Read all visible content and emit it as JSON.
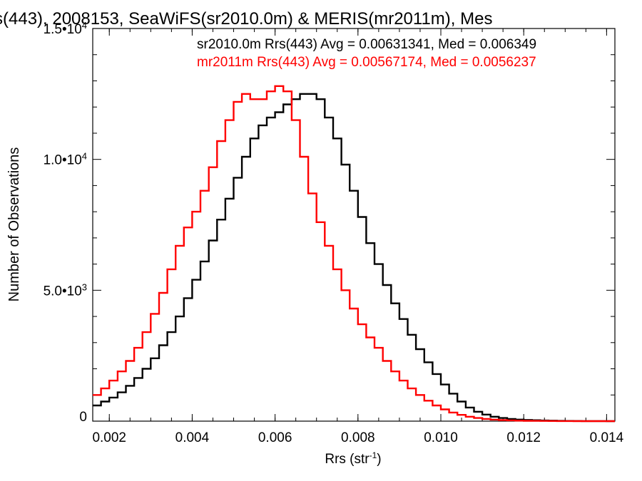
{
  "chart_data": {
    "type": "line",
    "title": "s(443), 2008153, SeaWiFS(sr2010.0m) & MERIS(mr2011m), Mes",
    "xlabel": "Rrs (str",
    "xlabel_sup": "-1",
    "xlabel_end": ")",
    "ylabel": "Number of Observations",
    "xlim": [
      0.0016,
      0.0142
    ],
    "ylim": [
      0,
      15000
    ],
    "xticks": [
      {
        "value": 0.002,
        "label": "0.002"
      },
      {
        "value": 0.004,
        "label": "0.004"
      },
      {
        "value": 0.006,
        "label": "0.006"
      },
      {
        "value": 0.008,
        "label": "0.008"
      },
      {
        "value": 0.01,
        "label": "0.010"
      },
      {
        "value": 0.012,
        "label": "0.012"
      },
      {
        "value": 0.014,
        "label": "0.014"
      }
    ],
    "yticks": [
      {
        "value": 0,
        "label": "0",
        "sup": ""
      },
      {
        "value": 5000,
        "label": "5.0•10",
        "sup": "3"
      },
      {
        "value": 10000,
        "label": "1.0•10",
        "sup": "4"
      },
      {
        "value": 15000,
        "label": "1.5•10",
        "sup": "4"
      }
    ],
    "grid": false,
    "legend_placement": "top-right",
    "series": [
      {
        "name": "sr2010.0m",
        "legend_text": "sr2010.0m Rrs(443) Avg = 0.00631341, Med = 0.006349",
        "color": "#000000",
        "x": [
          0.0016,
          0.0018,
          0.002,
          0.0022,
          0.0024,
          0.0026,
          0.0028,
          0.003,
          0.0032,
          0.0034,
          0.0036,
          0.0038,
          0.004,
          0.0042,
          0.0044,
          0.0046,
          0.0048,
          0.005,
          0.0052,
          0.0054,
          0.0056,
          0.0058,
          0.006,
          0.0062,
          0.0064,
          0.0066,
          0.0068,
          0.007,
          0.0072,
          0.0074,
          0.0076,
          0.0078,
          0.008,
          0.0082,
          0.0084,
          0.0086,
          0.0088,
          0.009,
          0.0092,
          0.0094,
          0.0096,
          0.0098,
          0.01,
          0.0102,
          0.0104,
          0.0106,
          0.0108,
          0.011,
          0.0112,
          0.0114,
          0.0116,
          0.0118,
          0.012,
          0.0122,
          0.0124,
          0.0126,
          0.0128,
          0.013,
          0.0132,
          0.0134,
          0.0136,
          0.0138,
          0.014,
          0.0142
        ],
        "y": [
          600,
          750,
          900,
          1100,
          1350,
          1650,
          2000,
          2400,
          2900,
          3400,
          4000,
          4700,
          5400,
          6100,
          6900,
          7700,
          8500,
          9300,
          10100,
          10800,
          11300,
          11600,
          11800,
          12100,
          12300,
          12500,
          12500,
          12300,
          11600,
          10800,
          9800,
          8800,
          7800,
          6800,
          6000,
          5200,
          4500,
          3900,
          3300,
          2750,
          2250,
          1800,
          1400,
          1050,
          750,
          520,
          360,
          250,
          170,
          120,
          85,
          60,
          45,
          35,
          25,
          18,
          12,
          8,
          5,
          4,
          3,
          2,
          1,
          0
        ]
      },
      {
        "name": "mr2011m",
        "legend_text": "mr2011m Rrs(443) Avg = 0.00567174, Med = 0.0056237",
        "color": "#ff0000",
        "x": [
          0.0016,
          0.0018,
          0.002,
          0.0022,
          0.0024,
          0.0026,
          0.0028,
          0.003,
          0.0032,
          0.0034,
          0.0036,
          0.0038,
          0.004,
          0.0042,
          0.0044,
          0.0046,
          0.0048,
          0.005,
          0.0052,
          0.0054,
          0.0056,
          0.0058,
          0.006,
          0.0062,
          0.0064,
          0.0066,
          0.0068,
          0.007,
          0.0072,
          0.0074,
          0.0076,
          0.0078,
          0.008,
          0.0082,
          0.0084,
          0.0086,
          0.0088,
          0.009,
          0.0092,
          0.0094,
          0.0096,
          0.0098,
          0.01,
          0.0102,
          0.0104,
          0.0106,
          0.0108,
          0.011,
          0.0112,
          0.0114,
          0.0116,
          0.0118,
          0.012,
          0.0122,
          0.0124,
          0.0126,
          0.0128,
          0.013,
          0.0132,
          0.0134,
          0.0136,
          0.0138,
          0.014,
          0.0142
        ],
        "y": [
          1000,
          1250,
          1550,
          1900,
          2300,
          2800,
          3400,
          4100,
          4900,
          5800,
          6700,
          7400,
          8000,
          8800,
          9700,
          10700,
          11500,
          12200,
          12500,
          12300,
          12300,
          12600,
          12800,
          12600,
          11500,
          10100,
          8700,
          7600,
          6700,
          5800,
          5000,
          4300,
          3700,
          3200,
          2800,
          2300,
          1900,
          1550,
          1250,
          1000,
          780,
          600,
          450,
          330,
          240,
          170,
          120,
          85,
          60,
          42,
          30,
          20,
          14,
          10,
          7,
          5,
          3,
          2,
          1,
          1,
          0,
          0,
          0,
          0
        ]
      }
    ]
  }
}
